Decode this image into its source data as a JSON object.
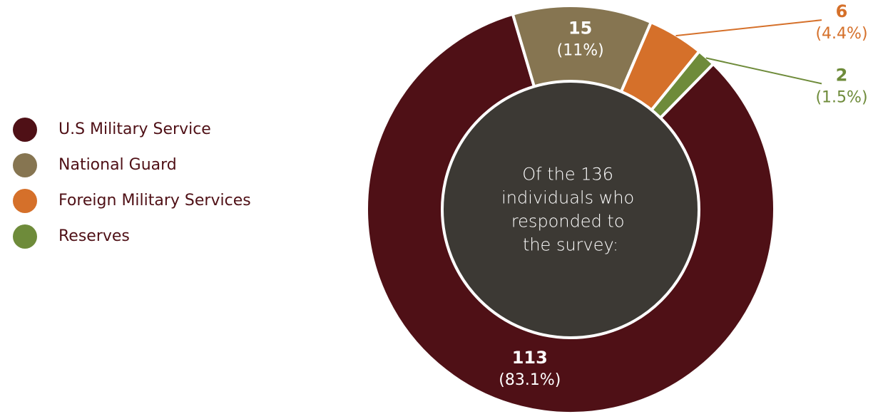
{
  "colors": {
    "background": "#ffffff",
    "center_fill": "#3c3934",
    "center_text": "#ffffff",
    "separator": "#ffffff",
    "legend_text": "#4f1016"
  },
  "chart_data": {
    "type": "pie",
    "variant": "donut",
    "total": 136,
    "center_text": [
      "Of the 136",
      "individuals who",
      "responded to",
      "the survey:"
    ],
    "legend_placement": "left",
    "slices": [
      {
        "label": "U.S Military Service",
        "value": 113,
        "percent_label": "(83.1%)",
        "color": "#4f1016"
      },
      {
        "label": "National Guard",
        "value": 15,
        "percent_label": "(11%)",
        "color": "#867551"
      },
      {
        "label": "Foreign Military Services",
        "value": 6,
        "percent_label": "(4.4%)",
        "color": "#d5702a"
      },
      {
        "label": "Reserves",
        "value": 2,
        "percent_label": "(1.5%)",
        "color": "#6e8b3a"
      }
    ]
  }
}
